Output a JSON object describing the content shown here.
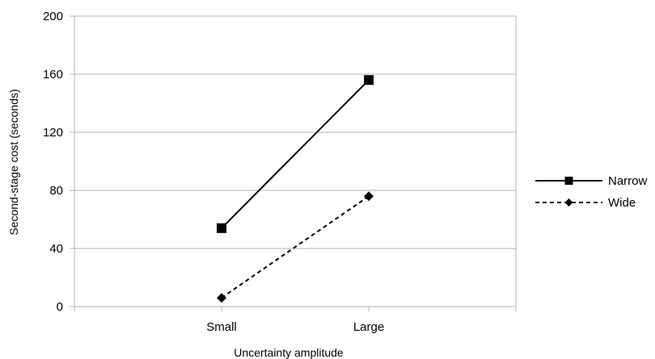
{
  "chart_data": {
    "type": "line",
    "categories": [
      "Small",
      "Large"
    ],
    "series": [
      {
        "name": "Narrow",
        "values": [
          54,
          156
        ],
        "marker": "square",
        "line": "solid",
        "color": "#000000"
      },
      {
        "name": "Wide",
        "values": [
          6,
          76
        ],
        "marker": "diamond",
        "line": "dashed",
        "color": "#000000"
      }
    ],
    "xlabel": "Uncertainty amplitude",
    "ylabel": "Second-stage cost (seconds)",
    "ylim": [
      0,
      200
    ],
    "yticks": [
      0,
      40,
      80,
      120,
      160,
      200
    ],
    "grid": true,
    "legend": "right"
  }
}
